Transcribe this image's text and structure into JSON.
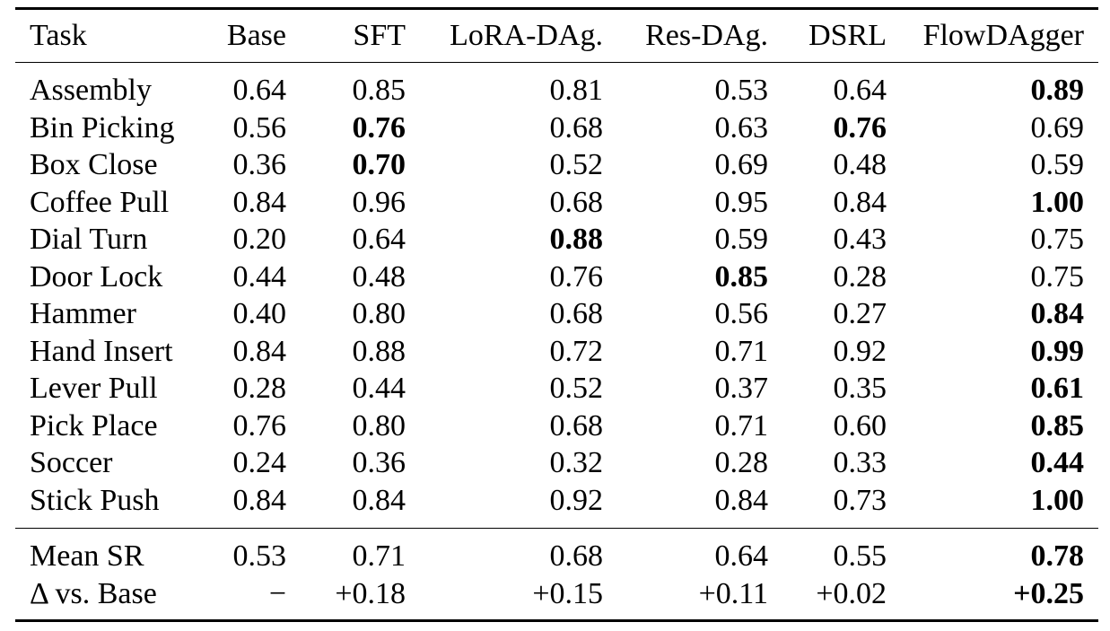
{
  "table": {
    "columns": [
      "Task",
      "Base",
      "SFT",
      "LoRA-DAg.",
      "Res-DAg.",
      "DSRL",
      "FlowDAgger"
    ],
    "rows": [
      {
        "task": "Assembly",
        "values": [
          "0.64",
          "0.85",
          "0.81",
          "0.53",
          "0.64",
          "0.89"
        ],
        "bold": [
          5
        ]
      },
      {
        "task": "Bin Picking",
        "values": [
          "0.56",
          "0.76",
          "0.68",
          "0.63",
          "0.76",
          "0.69"
        ],
        "bold": [
          1,
          4
        ]
      },
      {
        "task": "Box Close",
        "values": [
          "0.36",
          "0.70",
          "0.52",
          "0.69",
          "0.48",
          "0.59"
        ],
        "bold": [
          1
        ]
      },
      {
        "task": "Coffee Pull",
        "values": [
          "0.84",
          "0.96",
          "0.68",
          "0.95",
          "0.84",
          "1.00"
        ],
        "bold": [
          5
        ]
      },
      {
        "task": "Dial Turn",
        "values": [
          "0.20",
          "0.64",
          "0.88",
          "0.59",
          "0.43",
          "0.75"
        ],
        "bold": [
          2
        ]
      },
      {
        "task": "Door Lock",
        "values": [
          "0.44",
          "0.48",
          "0.76",
          "0.85",
          "0.28",
          "0.75"
        ],
        "bold": [
          3
        ]
      },
      {
        "task": "Hammer",
        "values": [
          "0.40",
          "0.80",
          "0.68",
          "0.56",
          "0.27",
          "0.84"
        ],
        "bold": [
          5
        ]
      },
      {
        "task": "Hand Insert",
        "values": [
          "0.84",
          "0.88",
          "0.72",
          "0.71",
          "0.92",
          "0.99"
        ],
        "bold": [
          5
        ]
      },
      {
        "task": "Lever Pull",
        "values": [
          "0.28",
          "0.44",
          "0.52",
          "0.37",
          "0.35",
          "0.61"
        ],
        "bold": [
          5
        ]
      },
      {
        "task": "Pick Place",
        "values": [
          "0.76",
          "0.80",
          "0.68",
          "0.71",
          "0.60",
          "0.85"
        ],
        "bold": [
          5
        ]
      },
      {
        "task": "Soccer",
        "values": [
          "0.24",
          "0.36",
          "0.32",
          "0.28",
          "0.33",
          "0.44"
        ],
        "bold": [
          5
        ]
      },
      {
        "task": "Stick Push",
        "values": [
          "0.84",
          "0.84",
          "0.92",
          "0.84",
          "0.73",
          "1.00"
        ],
        "bold": [
          5
        ]
      }
    ],
    "summary_rows": [
      {
        "task": "Mean SR",
        "values": [
          "0.53",
          "0.71",
          "0.68",
          "0.64",
          "0.55",
          "0.78"
        ],
        "bold": [
          5
        ]
      },
      {
        "task": "Δ vs. Base",
        "values": [
          "−",
          "+0.18",
          "+0.15",
          "+0.11",
          "+0.02",
          "+0.25"
        ],
        "bold": [
          5
        ]
      }
    ]
  }
}
